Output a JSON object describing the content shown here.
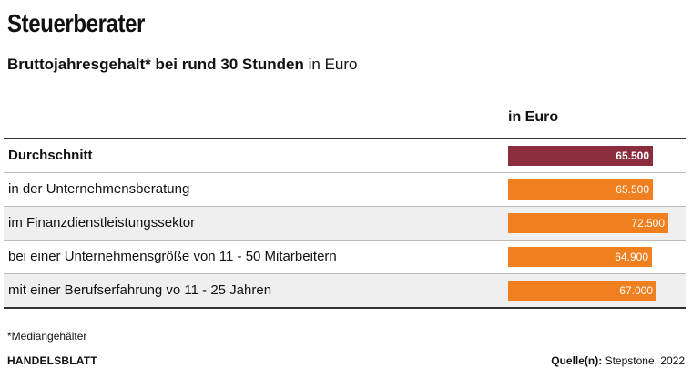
{
  "title": "Steuerberater",
  "subtitle": {
    "bold": "Bruttojahresgehalt* bei rund 30 Stunden",
    "normal": "in Euro"
  },
  "column_header": "in Euro",
  "colors": {
    "highlight": "#8a2d3c",
    "bar": "#f07f1f"
  },
  "chart_data": {
    "type": "bar",
    "orientation": "horizontal",
    "categories": [
      "Durchschnitt",
      "in der Unternehmensberatung",
      "im Finanzdienstleistungssektor",
      "bei einer Unternehmensgröße von 11 - 50 Mitarbeitern",
      "mit einer Berufserfahrung vo 11 - 25 Jahren"
    ],
    "values": [
      65500,
      65500,
      72500,
      64900,
      67000
    ],
    "value_labels": [
      "65.500",
      "65.500",
      "72.500",
      "64.900",
      "67.000"
    ],
    "highlight_index": 0
  },
  "footnote": "*Mediangehälter",
  "brand": "HANDELSBLATT",
  "source": {
    "label": "Quelle(n):",
    "text": "Stepstone, 2022"
  }
}
